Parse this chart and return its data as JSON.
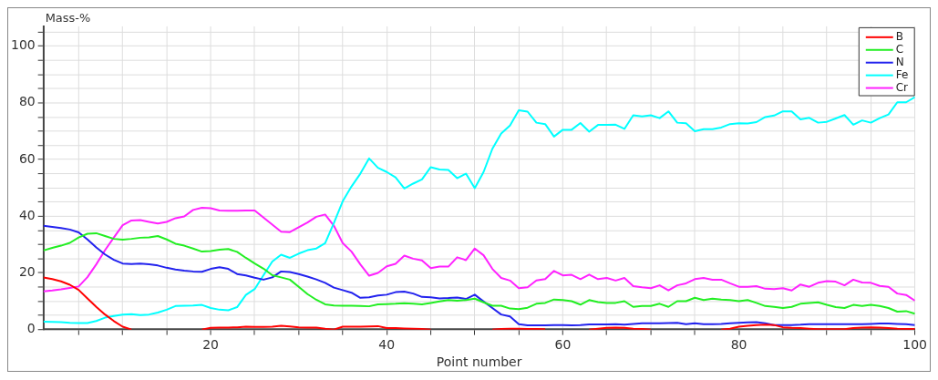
{
  "chart_data": {
    "type": "line",
    "xlabel": "Point number",
    "ylabel": "Mass-%",
    "x": [
      1,
      2,
      3,
      4,
      5,
      6,
      7,
      8,
      9,
      10,
      11,
      12,
      13,
      14,
      15,
      16,
      17,
      18,
      19,
      20,
      21,
      22,
      23,
      24,
      25,
      26,
      27,
      28,
      29,
      30,
      31,
      32,
      33,
      34,
      35,
      36,
      37,
      38,
      39,
      40,
      41,
      42,
      43,
      44,
      45,
      46,
      47,
      48,
      49,
      50,
      51,
      52,
      53,
      54,
      55,
      56,
      57,
      58,
      59,
      60,
      61,
      62,
      63,
      64,
      65,
      66,
      67,
      68,
      69,
      70,
      71,
      72,
      73,
      74,
      75,
      76,
      77,
      78,
      79,
      80,
      81,
      82,
      83,
      84,
      85,
      86,
      87,
      88,
      89,
      90,
      91,
      92,
      93,
      94,
      95,
      96,
      97,
      98,
      99,
      100
    ],
    "series": [
      {
        "name": "B",
        "color": "#ff0000",
        "values": [
          18.4,
          17.8,
          17,
          15.8,
          14,
          11,
          8,
          5.3,
          3,
          1,
          0,
          null,
          null,
          null,
          null,
          null,
          null,
          null,
          0,
          0.6,
          0.7,
          0.7,
          0.8,
          1,
          0.9,
          0.9,
          1,
          1.3,
          1.1,
          0.8,
          0.7,
          0.7,
          0.3,
          0,
          1,
          1,
          1,
          1.1,
          1.2,
          0.5,
          0.5,
          0.4,
          0.3,
          0.2,
          0,
          null,
          null,
          null,
          null,
          null,
          null,
          0,
          0.2,
          0.3,
          0.3,
          0.2,
          0.2,
          0.1,
          null,
          null,
          null,
          null,
          0,
          0.3,
          0.6,
          0.7,
          0.6,
          0.3,
          0.2,
          0,
          null,
          null,
          null,
          null,
          null,
          null,
          null,
          0,
          0.3,
          1,
          1.3,
          1.6,
          1.7,
          1.6,
          0.8,
          0.6,
          0.5,
          0.3,
          0.1,
          0.1,
          0.1,
          0.1,
          0.5,
          0.7,
          0.8,
          0.7,
          0.5,
          0.3,
          0.2,
          0.2
        ]
      },
      {
        "name": "C",
        "color": "#22ee22",
        "values": [
          27.9,
          28.8,
          29.6,
          30.6,
          32.5,
          33.8,
          34,
          33,
          32,
          31.7,
          32,
          32.4,
          32.5,
          33,
          31.8,
          30.3,
          29.6,
          28.6,
          27.5,
          27.7,
          28.2,
          28.4,
          27.4,
          25.3,
          23.3,
          21.5,
          19.2,
          18.4,
          17.6,
          15.1,
          12.5,
          10.5,
          8.9,
          8.5,
          8.4,
          8.4,
          8.3,
          8.2,
          8.9,
          9,
          9.1,
          9.3,
          9.1,
          8.9,
          9.4,
          9.9,
          10.4,
          10.2,
          10.4,
          10.9,
          9.6,
          8.4,
          8.4,
          7.4,
          7.2,
          7.7,
          9.1,
          9.4,
          10.6,
          10.4,
          10,
          8.8,
          10.4,
          9.7,
          9.4,
          9.4,
          10,
          8,
          8.3,
          8.3,
          9.1,
          8,
          10,
          10,
          11.2,
          10.4,
          10.9,
          10.6,
          10.4,
          10,
          10.4,
          9.4,
          8.3,
          8,
          7.6,
          8,
          9.1,
          9.4,
          9.6,
          8.7,
          7.9,
          7.6,
          8.7,
          8.3,
          8.7,
          8.3,
          7.6,
          6.3,
          6.5,
          5.6
        ]
      },
      {
        "name": "N",
        "color": "#2222ee",
        "values": [
          36.6,
          36.2,
          35.8,
          35.3,
          34.3,
          31.8,
          29,
          26.5,
          24.6,
          23.3,
          23.1,
          23.3,
          23,
          22.6,
          21.8,
          21.2,
          20.8,
          20.5,
          20.4,
          21.4,
          22,
          21.4,
          19.6,
          19.1,
          18.3,
          17.6,
          18.4,
          20.5,
          20.3,
          19.6,
          18.7,
          17.7,
          16.5,
          14.8,
          13.9,
          13,
          11.2,
          11.4,
          12,
          12.3,
          13.2,
          13.4,
          12.7,
          11.5,
          11.4,
          11,
          11.1,
          11.3,
          10.8,
          12.3,
          9.9,
          7.6,
          5.3,
          4.6,
          1.9,
          1.5,
          1.5,
          1.5,
          1.6,
          1.6,
          1.5,
          1.6,
          1.8,
          1.8,
          1.8,
          1.9,
          1.7,
          2,
          2.2,
          2.2,
          2.2,
          2.3,
          2.4,
          1.9,
          2.2,
          1.9,
          1.9,
          2,
          2.2,
          2.4,
          2.5,
          2.6,
          2.2,
          1.6,
          1.6,
          1.6,
          1.7,
          1.9,
          1.9,
          1.9,
          1.9,
          1.9,
          1.9,
          1.9,
          2,
          2.1,
          2.1,
          2,
          1.9,
          1.6
        ]
      },
      {
        "name": "Fe",
        "color": "#00ffff",
        "values": [
          2.8,
          2.7,
          2.6,
          2.4,
          2.3,
          2.3,
          3,
          4.2,
          4.8,
          5.3,
          5.4,
          5.1,
          5.3,
          6,
          7,
          8.3,
          8.4,
          8.5,
          8.7,
          7.6,
          7,
          6.8,
          7.9,
          12.2,
          14.3,
          19.2,
          24,
          26.4,
          25.3,
          26.8,
          28,
          28.6,
          30.5,
          37.6,
          45.3,
          50.5,
          55,
          60.4,
          57.1,
          55.6,
          53.7,
          49.8,
          51.5,
          53,
          57.3,
          56.5,
          56.3,
          53.4,
          55,
          49.9,
          55.6,
          63.8,
          69.2,
          72,
          77.4,
          76.9,
          73,
          72.5,
          68.1,
          70.5,
          70.5,
          72.9,
          69.8,
          72.2,
          72.2,
          72.3,
          70.8,
          75.6,
          75.2,
          75.6,
          74.6,
          77,
          73,
          72.8,
          70,
          70.7,
          70.7,
          71.3,
          72.5,
          72.8,
          72.7,
          73.2,
          75,
          75.5,
          77,
          77,
          74.2,
          74.7,
          73,
          73.3,
          74.5,
          75.7,
          72.3,
          73.8,
          73,
          74.6,
          75.9,
          80.2,
          80.2,
          82
        ]
      },
      {
        "name": "Cr",
        "color": "#ff22ff",
        "values": [
          13.5,
          13.8,
          14.2,
          14.7,
          15.2,
          18.5,
          23,
          28,
          32.5,
          36.8,
          38.5,
          38.6,
          38,
          37.4,
          38,
          39.3,
          39.9,
          42.2,
          43,
          42.8,
          42,
          41.9,
          41.9,
          42,
          42,
          39.5,
          37,
          34.5,
          34.4,
          36.1,
          37.8,
          39.8,
          40.6,
          36.6,
          30.5,
          27.5,
          23,
          19,
          20,
          22.3,
          23.2,
          26.1,
          25,
          24.4,
          21.7,
          22.2,
          22.2,
          25.5,
          24.5,
          28.6,
          26.2,
          21.4,
          18.2,
          17.3,
          14.6,
          14.9,
          17.3,
          17.8,
          20.7,
          19.1,
          19.3,
          17.8,
          19.4,
          17.8,
          18.2,
          17.3,
          18.2,
          15.3,
          14.9,
          14.6,
          15.6,
          13.8,
          15.6,
          16.3,
          17.8,
          18.2,
          17.6,
          17.6,
          16.3,
          15.1,
          15.1,
          15.3,
          14.4,
          14.3,
          14.6,
          13.8,
          15.9,
          15.1,
          16.5,
          17.1,
          16.9,
          15.6,
          17.6,
          16.6,
          16.5,
          15.4,
          15.1,
          12.7,
          12.2,
          10.2
        ]
      }
    ],
    "xlim": [
      1,
      100
    ],
    "xticks": [
      {
        "value": 5,
        "label": null
      },
      {
        "value": 10,
        "label": null
      },
      {
        "value": 15,
        "label": null
      },
      20,
      {
        "value": 25,
        "label": null
      },
      {
        "value": 30,
        "label": null
      },
      {
        "value": 35,
        "label": null
      },
      40,
      {
        "value": 45,
        "label": null
      },
      {
        "value": 50,
        "label": null
      },
      {
        "value": 55,
        "label": null
      },
      60,
      {
        "value": 65,
        "label": null
      },
      {
        "value": 70,
        "label": null
      },
      {
        "value": 75,
        "label": null
      },
      80,
      {
        "value": 85,
        "label": null
      },
      {
        "value": 90,
        "label": null
      },
      {
        "value": 95,
        "label": null
      },
      100
    ],
    "ylim": [
      0,
      107
    ],
    "yticks": [
      0,
      {
        "value": 5,
        "label": null
      },
      {
        "value": 10,
        "label": null
      },
      {
        "value": 15,
        "label": null
      },
      20,
      {
        "value": 25,
        "label": null
      },
      {
        "value": 30,
        "label": null
      },
      {
        "value": 35,
        "label": null
      },
      40,
      {
        "value": 45,
        "label": null
      },
      {
        "value": 50,
        "label": null
      },
      {
        "value": 55,
        "label": null
      },
      60,
      {
        "value": 65,
        "label": null
      },
      {
        "value": 70,
        "label": null
      },
      {
        "value": 75,
        "label": null
      },
      80,
      {
        "value": 85,
        "label": null
      },
      {
        "value": 90,
        "label": null
      },
      {
        "value": 95,
        "label": null
      },
      100,
      {
        "value": 105,
        "label": null
      }
    ],
    "grid": true,
    "legend": "top right",
    "marker": "none",
    "line_style": "solid"
  }
}
